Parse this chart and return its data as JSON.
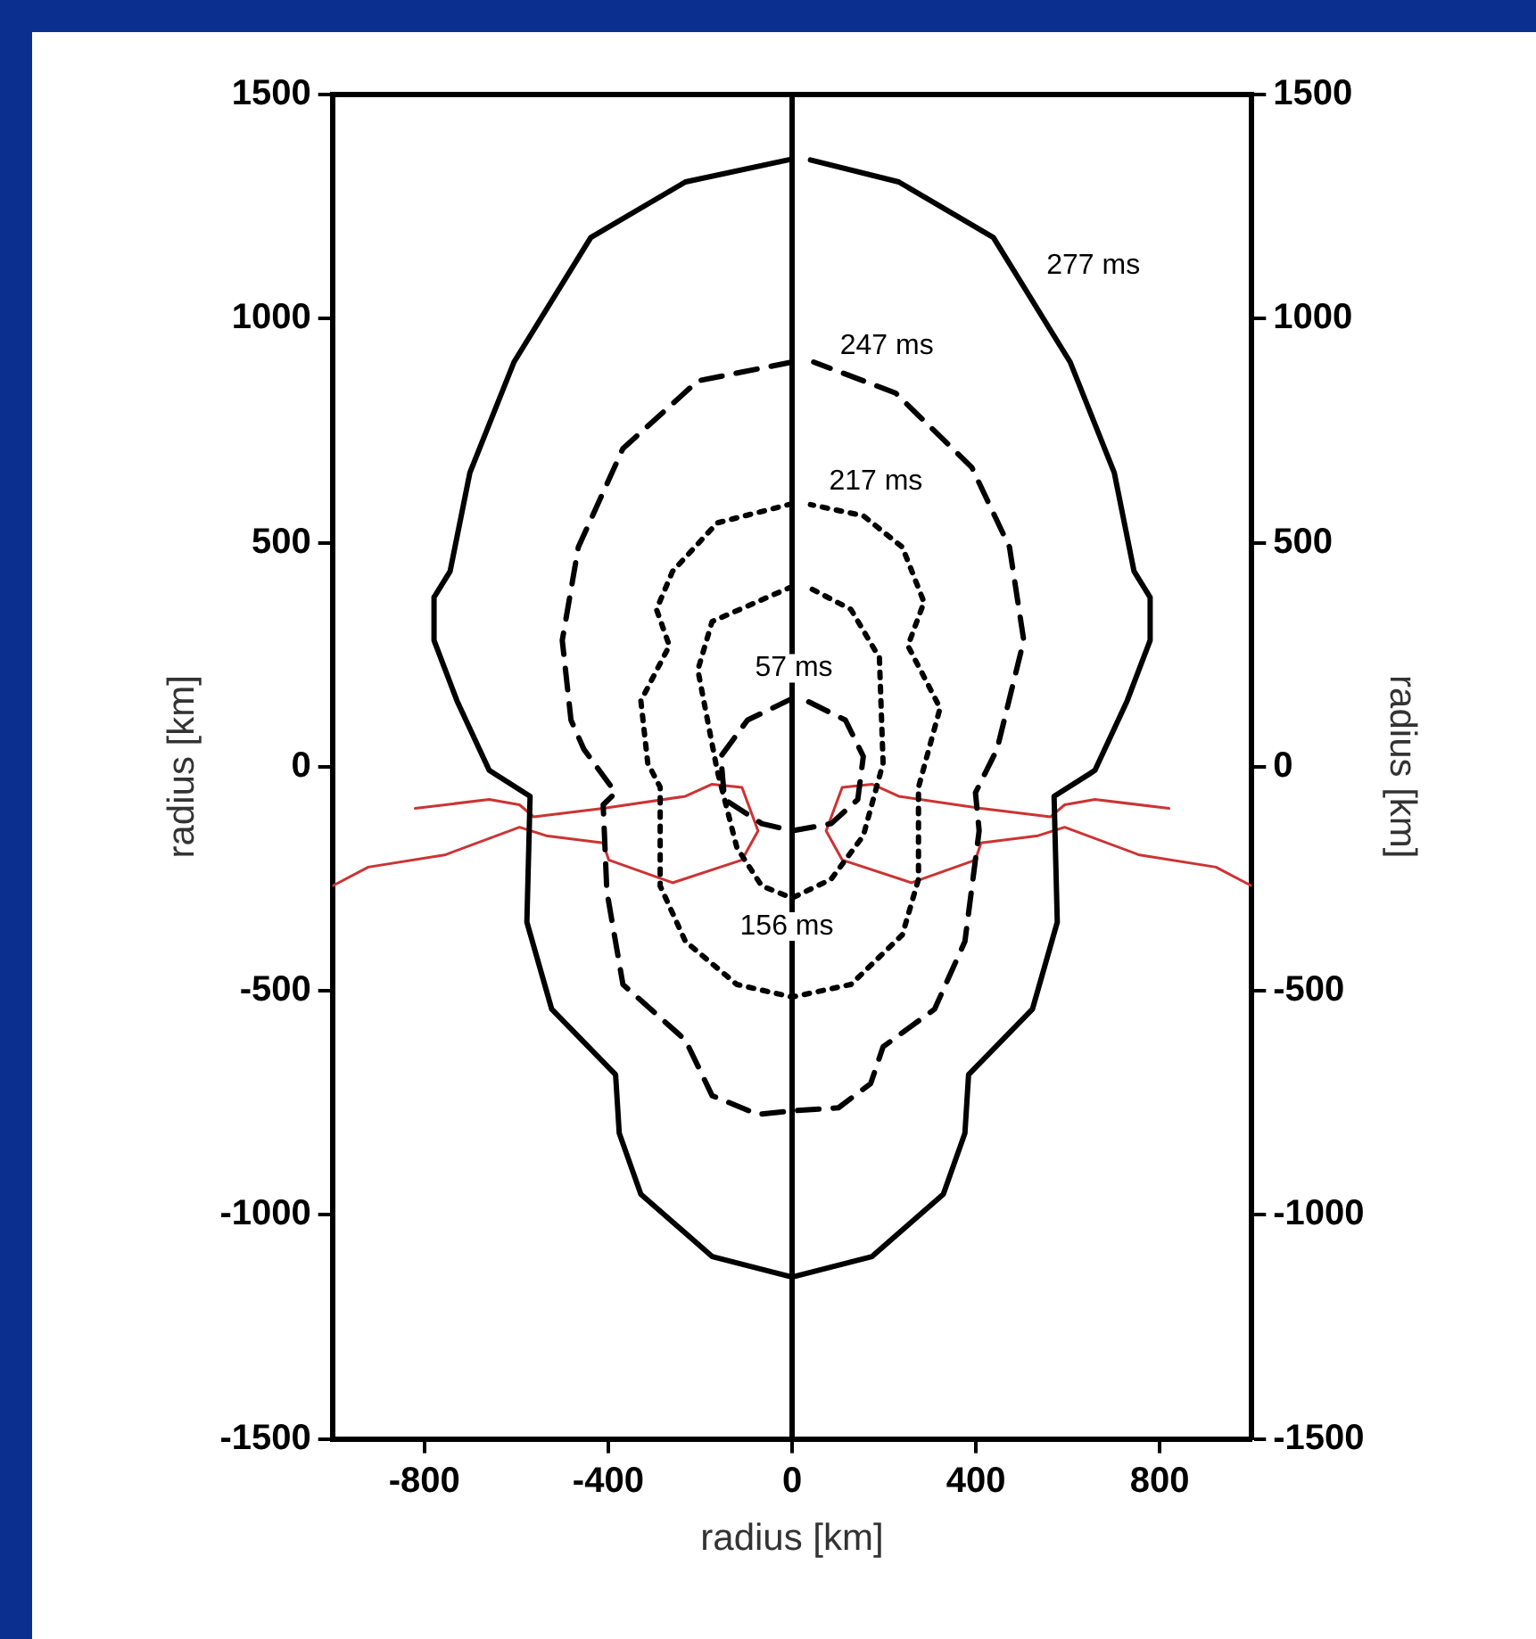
{
  "chart_data": {
    "type": "line",
    "xlabel": "radius [km]",
    "ylabel": "radius [km]",
    "y2label": "radius [km]",
    "xlim": [
      -1000,
      1000
    ],
    "xticks": [
      -800,
      -400,
      0,
      400,
      800
    ],
    "ylim": [
      -1500,
      1500
    ],
    "yticks": [
      -1500,
      -1000,
      -500,
      0,
      500,
      1000,
      1500
    ],
    "y2lim": [
      -1500,
      1500
    ],
    "y2ticks": [
      -1500,
      -1000,
      -500,
      0,
      500,
      1000,
      1500
    ],
    "grid": false,
    "legend": false,
    "marker": "none",
    "series": [
      {
        "name": "277 ms",
        "color": "#000000",
        "line_style": "solid",
        "x": [
          0,
          -232,
          -438,
          -605,
          -701,
          -744,
          -779,
          -779,
          -729,
          -659,
          -647,
          -570,
          -577,
          -523,
          -384,
          -376,
          -329,
          -174,
          0,
          174,
          329,
          376,
          384,
          523,
          577,
          570,
          647,
          659,
          729,
          779,
          779,
          744,
          701,
          605,
          438,
          232,
          40
        ],
        "values": [
          1356,
          1305,
          1181,
          903,
          656,
          436,
          378,
          282,
          147,
          -8,
          -16,
          -66,
          -347,
          -541,
          -687,
          -818,
          -954,
          -1093,
          -1139,
          -1093,
          -954,
          -818,
          -687,
          -541,
          -347,
          -66,
          -16,
          -8,
          147,
          282,
          378,
          436,
          656,
          903,
          1181,
          1305,
          1354
        ]
      },
      {
        "name": "247 ms",
        "color": "#000000",
        "line_style": "dashed",
        "x": [
          0,
          -205,
          -368,
          -465,
          -500,
          -481,
          -453,
          -384,
          -411,
          -403,
          -368,
          -232,
          -174,
          -74,
          0,
          101,
          171,
          198,
          310,
          376,
          407,
          399,
          446,
          504,
          473,
          391,
          225,
          47
        ],
        "values": [
          903,
          861,
          710,
          490,
          282,
          104,
          39,
          -58,
          -85,
          -278,
          -486,
          -610,
          -734,
          -776,
          -768,
          -761,
          -707,
          -625,
          -541,
          -390,
          -143,
          -58,
          39,
          282,
          490,
          668,
          834,
          903
        ]
      },
      {
        "name": "217 ms",
        "color": "#000000",
        "line_style": "dotted",
        "x": [
          0,
          -163,
          -260,
          -295,
          -267,
          -329,
          -314,
          -287,
          -287,
          -232,
          -120,
          0,
          128,
          240,
          275,
          275,
          322,
          252,
          287,
          240,
          155,
          40
        ],
        "values": [
          587,
          544,
          436,
          351,
          270,
          147,
          8,
          -46,
          -266,
          -390,
          -486,
          -514,
          -486,
          -375,
          -251,
          -46,
          131,
          270,
          367,
          490,
          560,
          585
        ]
      },
      {
        "name": "156 ms",
        "color": "#000000",
        "line_style": "dotted",
        "x": [
          0,
          -174,
          -205,
          -163,
          -120,
          -66,
          0,
          85,
          155,
          198,
          190,
          128,
          40
        ],
        "values": [
          402,
          324,
          216,
          -8,
          -181,
          -266,
          -293,
          -251,
          -154,
          8,
          243,
          351,
          398
        ]
      },
      {
        "name": "57 ms",
        "color": "#000000",
        "line_style": "dashed",
        "x": [
          0,
          -97,
          -155,
          -147,
          -66,
          0,
          85,
          143,
          155,
          116,
          30
        ],
        "values": [
          152,
          104,
          23,
          -73,
          -127,
          -143,
          -127,
          -73,
          23,
          104,
          148
        ]
      },
      {
        "color": "#cc3333",
        "line_style": "solid",
        "x": [
          -820,
          -659,
          -593,
          -562,
          -411,
          -232,
          -174,
          -109,
          -74,
          -109,
          -260,
          -399,
          -411,
          -535,
          -593,
          -756,
          -922,
          -1000
        ],
        "values": [
          -93,
          -73,
          -85,
          -112,
          -93,
          -66,
          -39,
          -46,
          -143,
          -208,
          -259,
          -208,
          -170,
          -154,
          -135,
          -197,
          -224,
          -266
        ]
      },
      {
        "color": "#cc3333",
        "line_style": "solid",
        "x": [
          820,
          659,
          593,
          562,
          411,
          232,
          174,
          109,
          74,
          109,
          260,
          399,
          411,
          535,
          593,
          756,
          922,
          1000
        ],
        "values": [
          -93,
          -73,
          -85,
          -112,
          -93,
          -66,
          -39,
          -46,
          -143,
          -208,
          -259,
          -208,
          -170,
          -154,
          -135,
          -197,
          -224,
          -266
        ]
      }
    ],
    "ref_lines": [
      {
        "axis": "x",
        "value": 0,
        "color": "#000000",
        "line_style": "solid"
      }
    ]
  }
}
